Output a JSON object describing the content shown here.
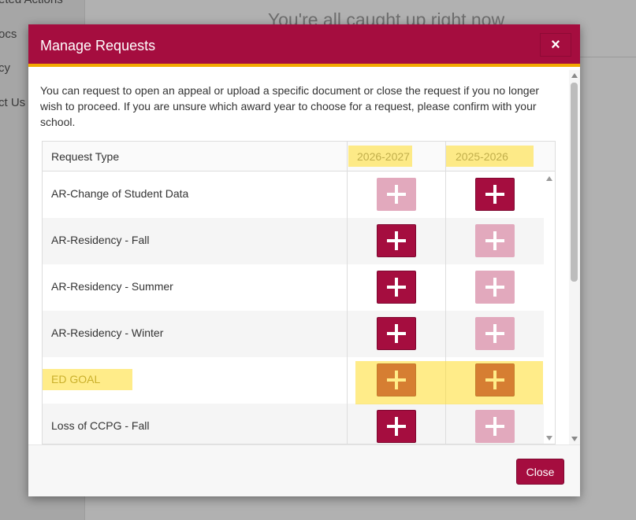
{
  "background": {
    "sidebar": [
      "eted Actions",
      "ocs",
      "cy",
      "ct Us"
    ],
    "heading": "You're all caught up right now"
  },
  "modal": {
    "title": "Manage Requests",
    "close_icon": "×",
    "description": "You can request to open an appeal or upload a specific document or close the request if you no longer wish to proceed. If you are unsure which award year to choose for a request, please confirm with your school.",
    "table": {
      "headers": [
        "Request Type",
        "2026-2027",
        "2025-2026"
      ],
      "rows": [
        "AR-Change of Student Data",
        "AR-Residency - Fall",
        "AR-Residency - Summer",
        "AR-Residency - Winter",
        "ED GOAL",
        "Loss of CCPG - Fall"
      ]
    },
    "footer_button": "Close"
  }
}
